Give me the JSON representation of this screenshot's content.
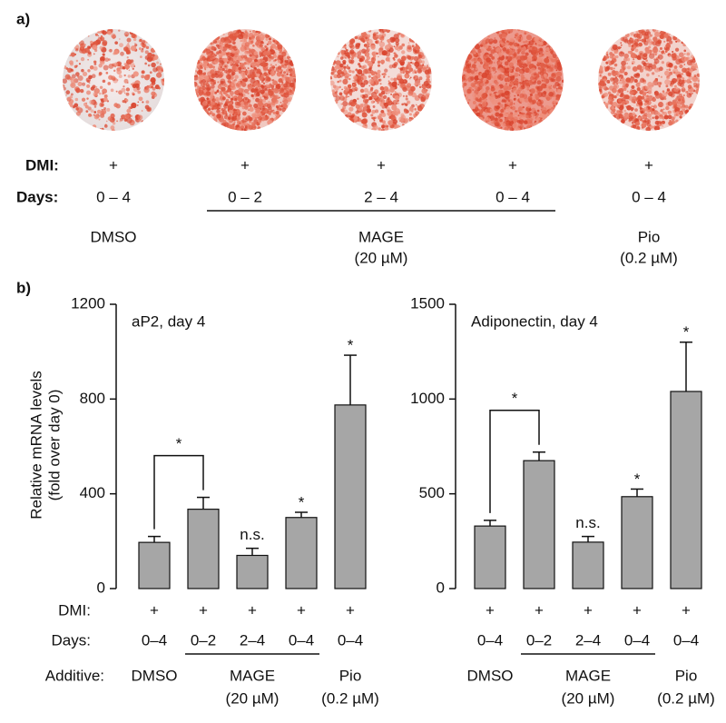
{
  "panel_a": {
    "label": "a)",
    "row_labels": [
      "DMI:",
      "Days:"
    ],
    "dmi": [
      "+",
      "+",
      "+",
      "+",
      "+"
    ],
    "days": [
      "0 – 4",
      "0 – 2",
      "2 – 4",
      "0 – 4",
      "0 – 4"
    ],
    "groups": [
      {
        "label": "DMSO"
      },
      {
        "label": "MAGE",
        "sublabel": "(20 µM)"
      },
      {
        "label": "Pio",
        "sublabel": "(0.2 µM)"
      }
    ]
  },
  "panel_b": {
    "label": "b)",
    "y_label": [
      "Relative mRNA levels",
      "(fold over day 0)"
    ],
    "row_labels": [
      "DMI:",
      "Days:",
      "Additive:"
    ]
  },
  "chart_data": [
    {
      "type": "bar",
      "title": "aP2, day 4",
      "color": "#a6a6a6",
      "categories": [
        "0–4",
        "0–2",
        "2–4",
        "0–4",
        "0–4"
      ],
      "dmi": [
        "+",
        "+",
        "+",
        "+",
        "+"
      ],
      "values": [
        195,
        335,
        140,
        300,
        775
      ],
      "errors": [
        25,
        50,
        30,
        22,
        210
      ],
      "annotations": [
        null,
        null,
        "n.s.",
        "*",
        "*"
      ],
      "bracket": {
        "label": "*"
      },
      "groups": [
        {
          "label": "DMSO"
        },
        {
          "label": "MAGE",
          "sublabel": "(20 µM)"
        },
        {
          "label": "Pio",
          "sublabel": "(0.2 µM)"
        }
      ],
      "ylim": [
        0,
        1200
      ],
      "yticks": [
        0,
        400,
        800,
        1200
      ]
    },
    {
      "type": "bar",
      "title": "Adiponectin, day 4",
      "color": "#a6a6a6",
      "categories": [
        "0–4",
        "0–2",
        "2–4",
        "0–4",
        "0–4"
      ],
      "dmi": [
        "+",
        "+",
        "+",
        "+",
        "+"
      ],
      "values": [
        330,
        675,
        245,
        485,
        1040
      ],
      "errors": [
        30,
        45,
        30,
        40,
        260
      ],
      "annotations": [
        null,
        null,
        "n.s.",
        "*",
        "*"
      ],
      "bracket": {
        "label": "*"
      },
      "groups": [
        {
          "label": "DMSO"
        },
        {
          "label": "MAGE",
          "sublabel": "(20 µM)"
        },
        {
          "label": "Pio",
          "sublabel": "(0.2 µM)"
        }
      ],
      "ylim": [
        0,
        1500
      ],
      "yticks": [
        0,
        500,
        1000,
        1500
      ]
    }
  ]
}
